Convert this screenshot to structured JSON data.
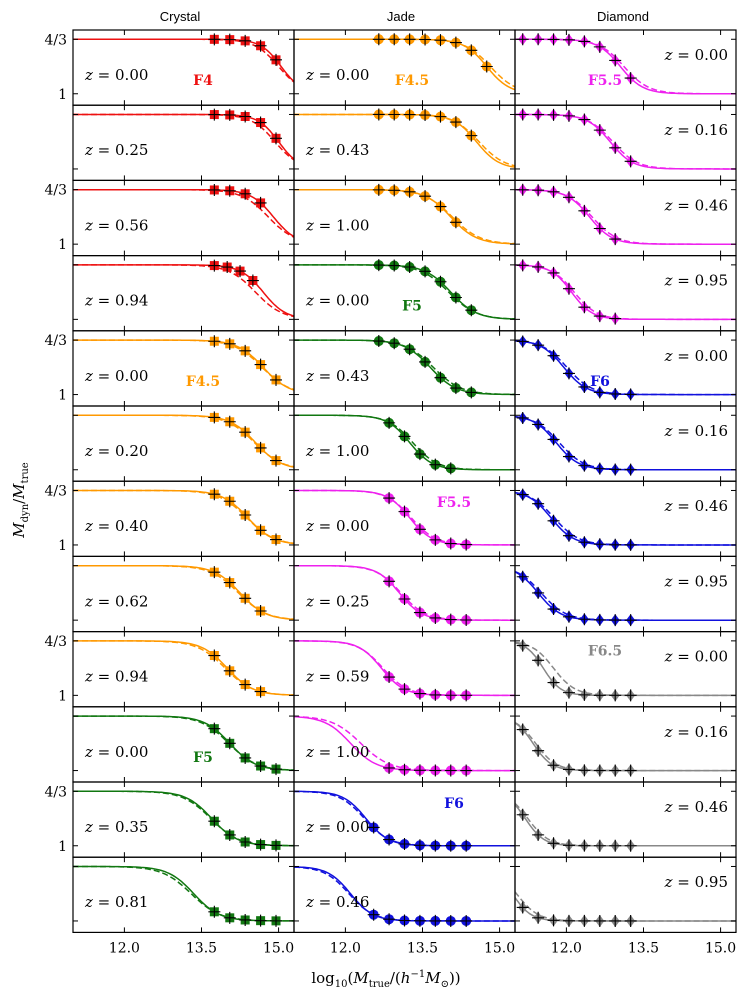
{
  "figure": {
    "columns": [
      "Crystal",
      "Jade",
      "Diamond"
    ],
    "xlabel": "log10(M_true/(h^-1 M_sun))",
    "ylabel": "M_dyn/M_true"
  },
  "colors": {
    "F4": "#ee1111",
    "F4.5": "#ff9900",
    "F5": "#117711",
    "F5.5": "#ee22ee",
    "F6": "#1111dd",
    "F6.5": "#888888"
  },
  "chart_data": {
    "type": "line",
    "xlim": [
      11.0,
      15.3
    ],
    "ylim": [
      0.93,
      1.39
    ],
    "xticks": [
      12.0,
      13.5,
      15.0
    ],
    "xtick_labels": [
      "12.0",
      "13.5",
      "15.0"
    ],
    "yticks": [
      1.0,
      1.3333
    ],
    "ytick_labels": [
      "1",
      "4/3"
    ],
    "panels": [
      {
        "column": "Crystal",
        "row": 0,
        "z": "0.00",
        "model": "F4",
        "show_model_label": true,
        "M50": 15.05,
        "w": 0.2,
        "dM50": -0.05,
        "dw": 0.03,
        "points": [
          13.75,
          14.05,
          14.35,
          14.65,
          14.95
        ]
      },
      {
        "column": "Crystal",
        "row": 1,
        "z": "0.25",
        "model": "F4",
        "show_model_label": false,
        "M50": 15.0,
        "w": 0.2,
        "dM50": -0.07,
        "dw": 0.03,
        "points": [
          13.75,
          14.05,
          14.35,
          14.65,
          14.95
        ]
      },
      {
        "column": "Crystal",
        "row": 2,
        "z": "0.56",
        "model": "F4",
        "show_model_label": false,
        "M50": 14.9,
        "w": 0.22,
        "dM50": -0.1,
        "dw": 0.04,
        "points": [
          13.75,
          14.05,
          14.35,
          14.65
        ]
      },
      {
        "column": "Crystal",
        "row": 3,
        "z": "0.94",
        "model": "F4",
        "show_model_label": false,
        "M50": 14.7,
        "w": 0.22,
        "dM50": -0.15,
        "dw": 0.04,
        "points": [
          13.75,
          14.0,
          14.25,
          14.5
        ]
      },
      {
        "column": "Crystal",
        "row": 4,
        "z": "0.00",
        "model": "F4.5",
        "show_model_label": true,
        "M50": 14.7,
        "w": 0.25,
        "dM50": -0.02,
        "dw": 0.02,
        "points": [
          13.75,
          14.05,
          14.35,
          14.65,
          14.95
        ]
      },
      {
        "column": "Crystal",
        "row": 5,
        "z": "0.20",
        "model": "F4.5",
        "show_model_label": false,
        "M50": 14.55,
        "w": 0.25,
        "dM50": -0.02,
        "dw": 0.02,
        "points": [
          13.75,
          14.05,
          14.35,
          14.65,
          14.95
        ]
      },
      {
        "column": "Crystal",
        "row": 6,
        "z": "0.40",
        "model": "F4.5",
        "show_model_label": false,
        "M50": 14.4,
        "w": 0.25,
        "dM50": -0.02,
        "dw": 0.02,
        "points": [
          13.75,
          14.05,
          14.35,
          14.65,
          14.95
        ]
      },
      {
        "column": "Crystal",
        "row": 7,
        "z": "0.62",
        "model": "F4.5",
        "show_model_label": false,
        "M50": 14.25,
        "w": 0.25,
        "dM50": -0.03,
        "dw": 0.02,
        "points": [
          13.75,
          14.05,
          14.35,
          14.65
        ]
      },
      {
        "column": "Crystal",
        "row": 8,
        "z": "0.94",
        "model": "F4.5",
        "show_model_label": false,
        "M50": 14.0,
        "w": 0.25,
        "dM50": -0.04,
        "dw": 0.02,
        "points": [
          13.75,
          14.05,
          14.35,
          14.65
        ]
      },
      {
        "column": "Crystal",
        "row": 9,
        "z": "0.00",
        "model": "F5",
        "show_model_label": true,
        "M50": 14.05,
        "w": 0.25,
        "dM50": -0.02,
        "dw": 0.02,
        "points": [
          13.75,
          14.05,
          14.35,
          14.65,
          14.95
        ]
      },
      {
        "column": "Crystal",
        "row": 10,
        "z": "0.35",
        "model": "F5",
        "show_model_label": false,
        "M50": 13.7,
        "w": 0.25,
        "dM50": -0.02,
        "dw": 0.02,
        "points": [
          13.75,
          14.05,
          14.35,
          14.65,
          14.95
        ]
      },
      {
        "column": "Crystal",
        "row": 11,
        "z": "0.81",
        "model": "F5",
        "show_model_label": false,
        "M50": 13.35,
        "w": 0.25,
        "dM50": -0.05,
        "dw": 0.03,
        "points": [
          13.75,
          14.05,
          14.35,
          14.65,
          14.95
        ]
      },
      {
        "column": "Jade",
        "row": 0,
        "z": "0.00",
        "model": "F4.5",
        "show_model_label": true,
        "M50": 14.75,
        "w": 0.22,
        "dM50": 0.07,
        "dw": 0.03,
        "points": [
          12.65,
          12.95,
          13.25,
          13.55,
          13.85,
          14.15,
          14.45,
          14.75
        ]
      },
      {
        "column": "Jade",
        "row": 1,
        "z": "0.43",
        "model": "F4.5",
        "show_model_label": false,
        "M50": 14.55,
        "w": 0.22,
        "dM50": 0.05,
        "dw": 0.03,
        "points": [
          12.65,
          12.95,
          13.25,
          13.55,
          13.85,
          14.15,
          14.45
        ]
      },
      {
        "column": "Jade",
        "row": 2,
        "z": "1.00",
        "model": "F4.5",
        "show_model_label": false,
        "M50": 14.05,
        "w": 0.25,
        "dM50": 0.03,
        "dw": 0.02,
        "points": [
          12.65,
          12.95,
          13.25,
          13.55,
          13.85,
          14.15
        ]
      },
      {
        "column": "Jade",
        "row": 3,
        "z": "0.00",
        "model": "F5",
        "show_model_label": true,
        "M50": 14.05,
        "w": 0.25,
        "dM50": -0.04,
        "dw": 0.02,
        "points": [
          12.65,
          12.95,
          13.25,
          13.55,
          13.85,
          14.15,
          14.45
        ]
      },
      {
        "column": "Jade",
        "row": 4,
        "z": "0.43",
        "model": "F5",
        "show_model_label": false,
        "M50": 13.65,
        "w": 0.25,
        "dM50": 0.06,
        "dw": 0.02,
        "points": [
          12.65,
          12.95,
          13.25,
          13.55,
          13.85,
          14.15,
          14.45
        ]
      },
      {
        "column": "Jade",
        "row": 5,
        "z": "1.00",
        "model": "F5",
        "show_model_label": false,
        "M50": 13.25,
        "w": 0.22,
        "dM50": 0.06,
        "dw": 0.02,
        "points": [
          12.85,
          13.15,
          13.45,
          13.75,
          14.05
        ]
      },
      {
        "column": "Jade",
        "row": 6,
        "z": "0.00",
        "model": "F5.5",
        "show_model_label": true,
        "M50": 13.25,
        "w": 0.22,
        "dM50": 0.03,
        "dw": 0.02,
        "points": [
          12.85,
          13.15,
          13.45,
          13.75,
          14.05,
          14.35
        ]
      },
      {
        "column": "Jade",
        "row": 7,
        "z": "0.25",
        "model": "F5.5",
        "show_model_label": false,
        "M50": 13.05,
        "w": 0.22,
        "dM50": 0.03,
        "dw": 0.02,
        "points": [
          12.85,
          13.15,
          13.45,
          13.75,
          14.05,
          14.35
        ]
      },
      {
        "column": "Jade",
        "row": 8,
        "z": "0.59",
        "model": "F5.5",
        "show_model_label": false,
        "M50": 12.7,
        "w": 0.22,
        "dM50": 0.03,
        "dw": 0.02,
        "points": [
          12.85,
          13.15,
          13.45,
          13.75,
          14.05,
          14.35
        ]
      },
      {
        "column": "Jade",
        "row": 9,
        "z": "1.00",
        "model": "F5.5",
        "show_model_label": false,
        "M50": 12.1,
        "w": 0.25,
        "dM50": 0.2,
        "dw": 0.03,
        "points": [
          12.85,
          13.15,
          13.45,
          13.75,
          14.05,
          14.35
        ]
      },
      {
        "column": "Jade",
        "row": 10,
        "z": "0.00",
        "model": "F6",
        "show_model_label": true,
        "M50": 12.4,
        "w": 0.22,
        "dM50": -0.03,
        "dw": 0.02,
        "points": [
          12.55,
          12.85,
          13.15,
          13.45,
          13.75,
          14.05,
          14.35
        ]
      },
      {
        "column": "Jade",
        "row": 11,
        "z": "0.46",
        "model": "F6",
        "show_model_label": false,
        "M50": 12.1,
        "w": 0.22,
        "dM50": -0.03,
        "dw": 0.02,
        "points": [
          12.55,
          12.85,
          13.15,
          13.45,
          13.75,
          14.05,
          14.35
        ]
      },
      {
        "column": "Diamond",
        "row": 0,
        "z": "0.00",
        "model": "F5.5",
        "show_model_label": true,
        "M50": 13.05,
        "w": 0.22,
        "dM50": 0.07,
        "dw": 0.02,
        "points": [
          11.15,
          11.45,
          11.75,
          12.05,
          12.35,
          12.65,
          12.95,
          13.25
        ]
      },
      {
        "column": "Diamond",
        "row": 1,
        "z": "0.16",
        "model": "F5.5",
        "show_model_label": false,
        "M50": 12.85,
        "w": 0.22,
        "dM50": 0.05,
        "dw": 0.02,
        "points": [
          11.15,
          11.45,
          11.75,
          12.05,
          12.35,
          12.65,
          12.95,
          13.25
        ]
      },
      {
        "column": "Diamond",
        "row": 2,
        "z": "0.46",
        "model": "F5.5",
        "show_model_label": false,
        "M50": 12.45,
        "w": 0.22,
        "dM50": 0.05,
        "dw": 0.02,
        "points": [
          11.15,
          11.45,
          11.75,
          12.05,
          12.35,
          12.65,
          12.95
        ]
      },
      {
        "column": "Diamond",
        "row": 3,
        "z": "0.95",
        "model": "F5.5",
        "show_model_label": false,
        "M50": 12.1,
        "w": 0.2,
        "dM50": 0.05,
        "dw": 0.02,
        "points": [
          11.15,
          11.45,
          11.75,
          12.05,
          12.35,
          12.65,
          12.95
        ]
      },
      {
        "column": "Diamond",
        "row": 4,
        "z": "0.00",
        "model": "F6",
        "show_model_label": true,
        "M50": 11.95,
        "w": 0.22,
        "dM50": 0.06,
        "dw": 0.02,
        "points": [
          11.15,
          11.45,
          11.75,
          12.05,
          12.35,
          12.65,
          12.95,
          13.25
        ]
      },
      {
        "column": "Diamond",
        "row": 5,
        "z": "0.16",
        "model": "F6",
        "show_model_label": false,
        "M50": 11.8,
        "w": 0.22,
        "dM50": 0.06,
        "dw": 0.02,
        "points": [
          11.15,
          11.45,
          11.75,
          12.05,
          12.35,
          12.65,
          12.95,
          13.25
        ]
      },
      {
        "column": "Diamond",
        "row": 6,
        "z": "0.46",
        "model": "F6",
        "show_model_label": false,
        "M50": 11.7,
        "w": 0.22,
        "dM50": 0.06,
        "dw": 0.02,
        "points": [
          11.15,
          11.45,
          11.75,
          12.05,
          12.35,
          12.65,
          12.95,
          13.25
        ]
      },
      {
        "column": "Diamond",
        "row": 7,
        "z": "0.95",
        "model": "F6",
        "show_model_label": false,
        "M50": 11.45,
        "w": 0.22,
        "dM50": 0.06,
        "dw": 0.02,
        "points": [
          11.15,
          11.45,
          11.75,
          12.05,
          12.35,
          12.65,
          12.95,
          13.25
        ]
      },
      {
        "column": "Diamond",
        "row": 8,
        "z": "0.00",
        "model": "F6.5",
        "show_model_label": true,
        "M50": 11.55,
        "w": 0.17,
        "dM50": 0.2,
        "dw": 0.04,
        "points": [
          11.15,
          11.45,
          11.75,
          12.05,
          12.35,
          12.65,
          12.95,
          13.25
        ]
      },
      {
        "column": "Diamond",
        "row": 9,
        "z": "0.16",
        "model": "F6.5",
        "show_model_label": false,
        "M50": 11.35,
        "w": 0.18,
        "dM50": 0.05,
        "dw": 0.02,
        "points": [
          11.15,
          11.45,
          11.75,
          12.05,
          12.35,
          12.65,
          12.95,
          13.25
        ]
      },
      {
        "column": "Diamond",
        "row": 10,
        "z": "0.46",
        "model": "F6.5",
        "show_model_label": false,
        "M50": 11.2,
        "w": 0.18,
        "dM50": 0.05,
        "dw": 0.02,
        "points": [
          11.15,
          11.45,
          11.75,
          12.05,
          12.35,
          12.65,
          12.95,
          13.25
        ]
      },
      {
        "column": "Diamond",
        "row": 11,
        "z": "0.95",
        "model": "F6.5",
        "show_model_label": false,
        "M50": 10.95,
        "w": 0.18,
        "dM50": 0.08,
        "dw": 0.03,
        "points": [
          11.15,
          11.45,
          11.75,
          12.05,
          12.35,
          12.65,
          12.95,
          13.25
        ]
      }
    ]
  }
}
